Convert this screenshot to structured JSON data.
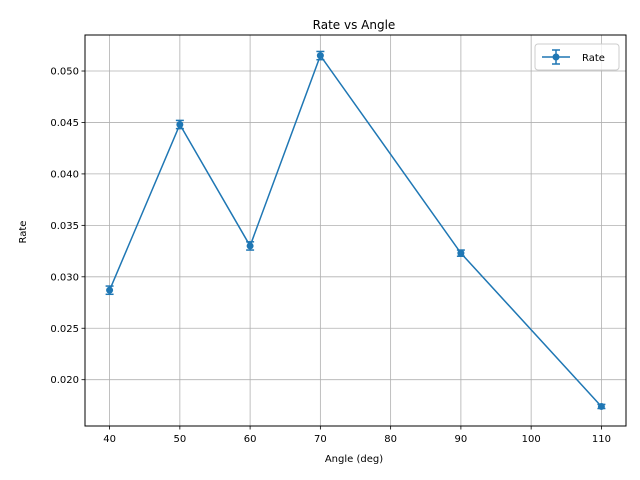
{
  "chart_data": {
    "type": "line",
    "title": "Rate vs Angle",
    "xlabel": "Angle (deg)",
    "ylabel": "Rate",
    "xlim": [
      36.5,
      113.5
    ],
    "ylim": [
      0.0155,
      0.0535
    ],
    "x_ticks": [
      40,
      50,
      60,
      70,
      80,
      90,
      100,
      110
    ],
    "x_tick_labels": [
      "40",
      "50",
      "60",
      "70",
      "80",
      "90",
      "100",
      "110"
    ],
    "y_ticks": [
      0.02,
      0.025,
      0.03,
      0.035,
      0.04,
      0.045,
      0.05
    ],
    "y_tick_labels": [
      "0.020",
      "0.025",
      "0.030",
      "0.035",
      "0.040",
      "0.045",
      "0.050"
    ],
    "grid": true,
    "legend_position": "top-right",
    "series": [
      {
        "name": "Rate",
        "color": "#1f77b4",
        "marker": "circle",
        "error_bars": true,
        "x": [
          40,
          50,
          60,
          70,
          90,
          110
        ],
        "y": [
          0.0287,
          0.0448,
          0.033,
          0.0515,
          0.0323,
          0.0174
        ],
        "yerr": [
          0.0004,
          0.0004,
          0.0004,
          0.0004,
          0.0003,
          0.0002
        ]
      }
    ]
  }
}
